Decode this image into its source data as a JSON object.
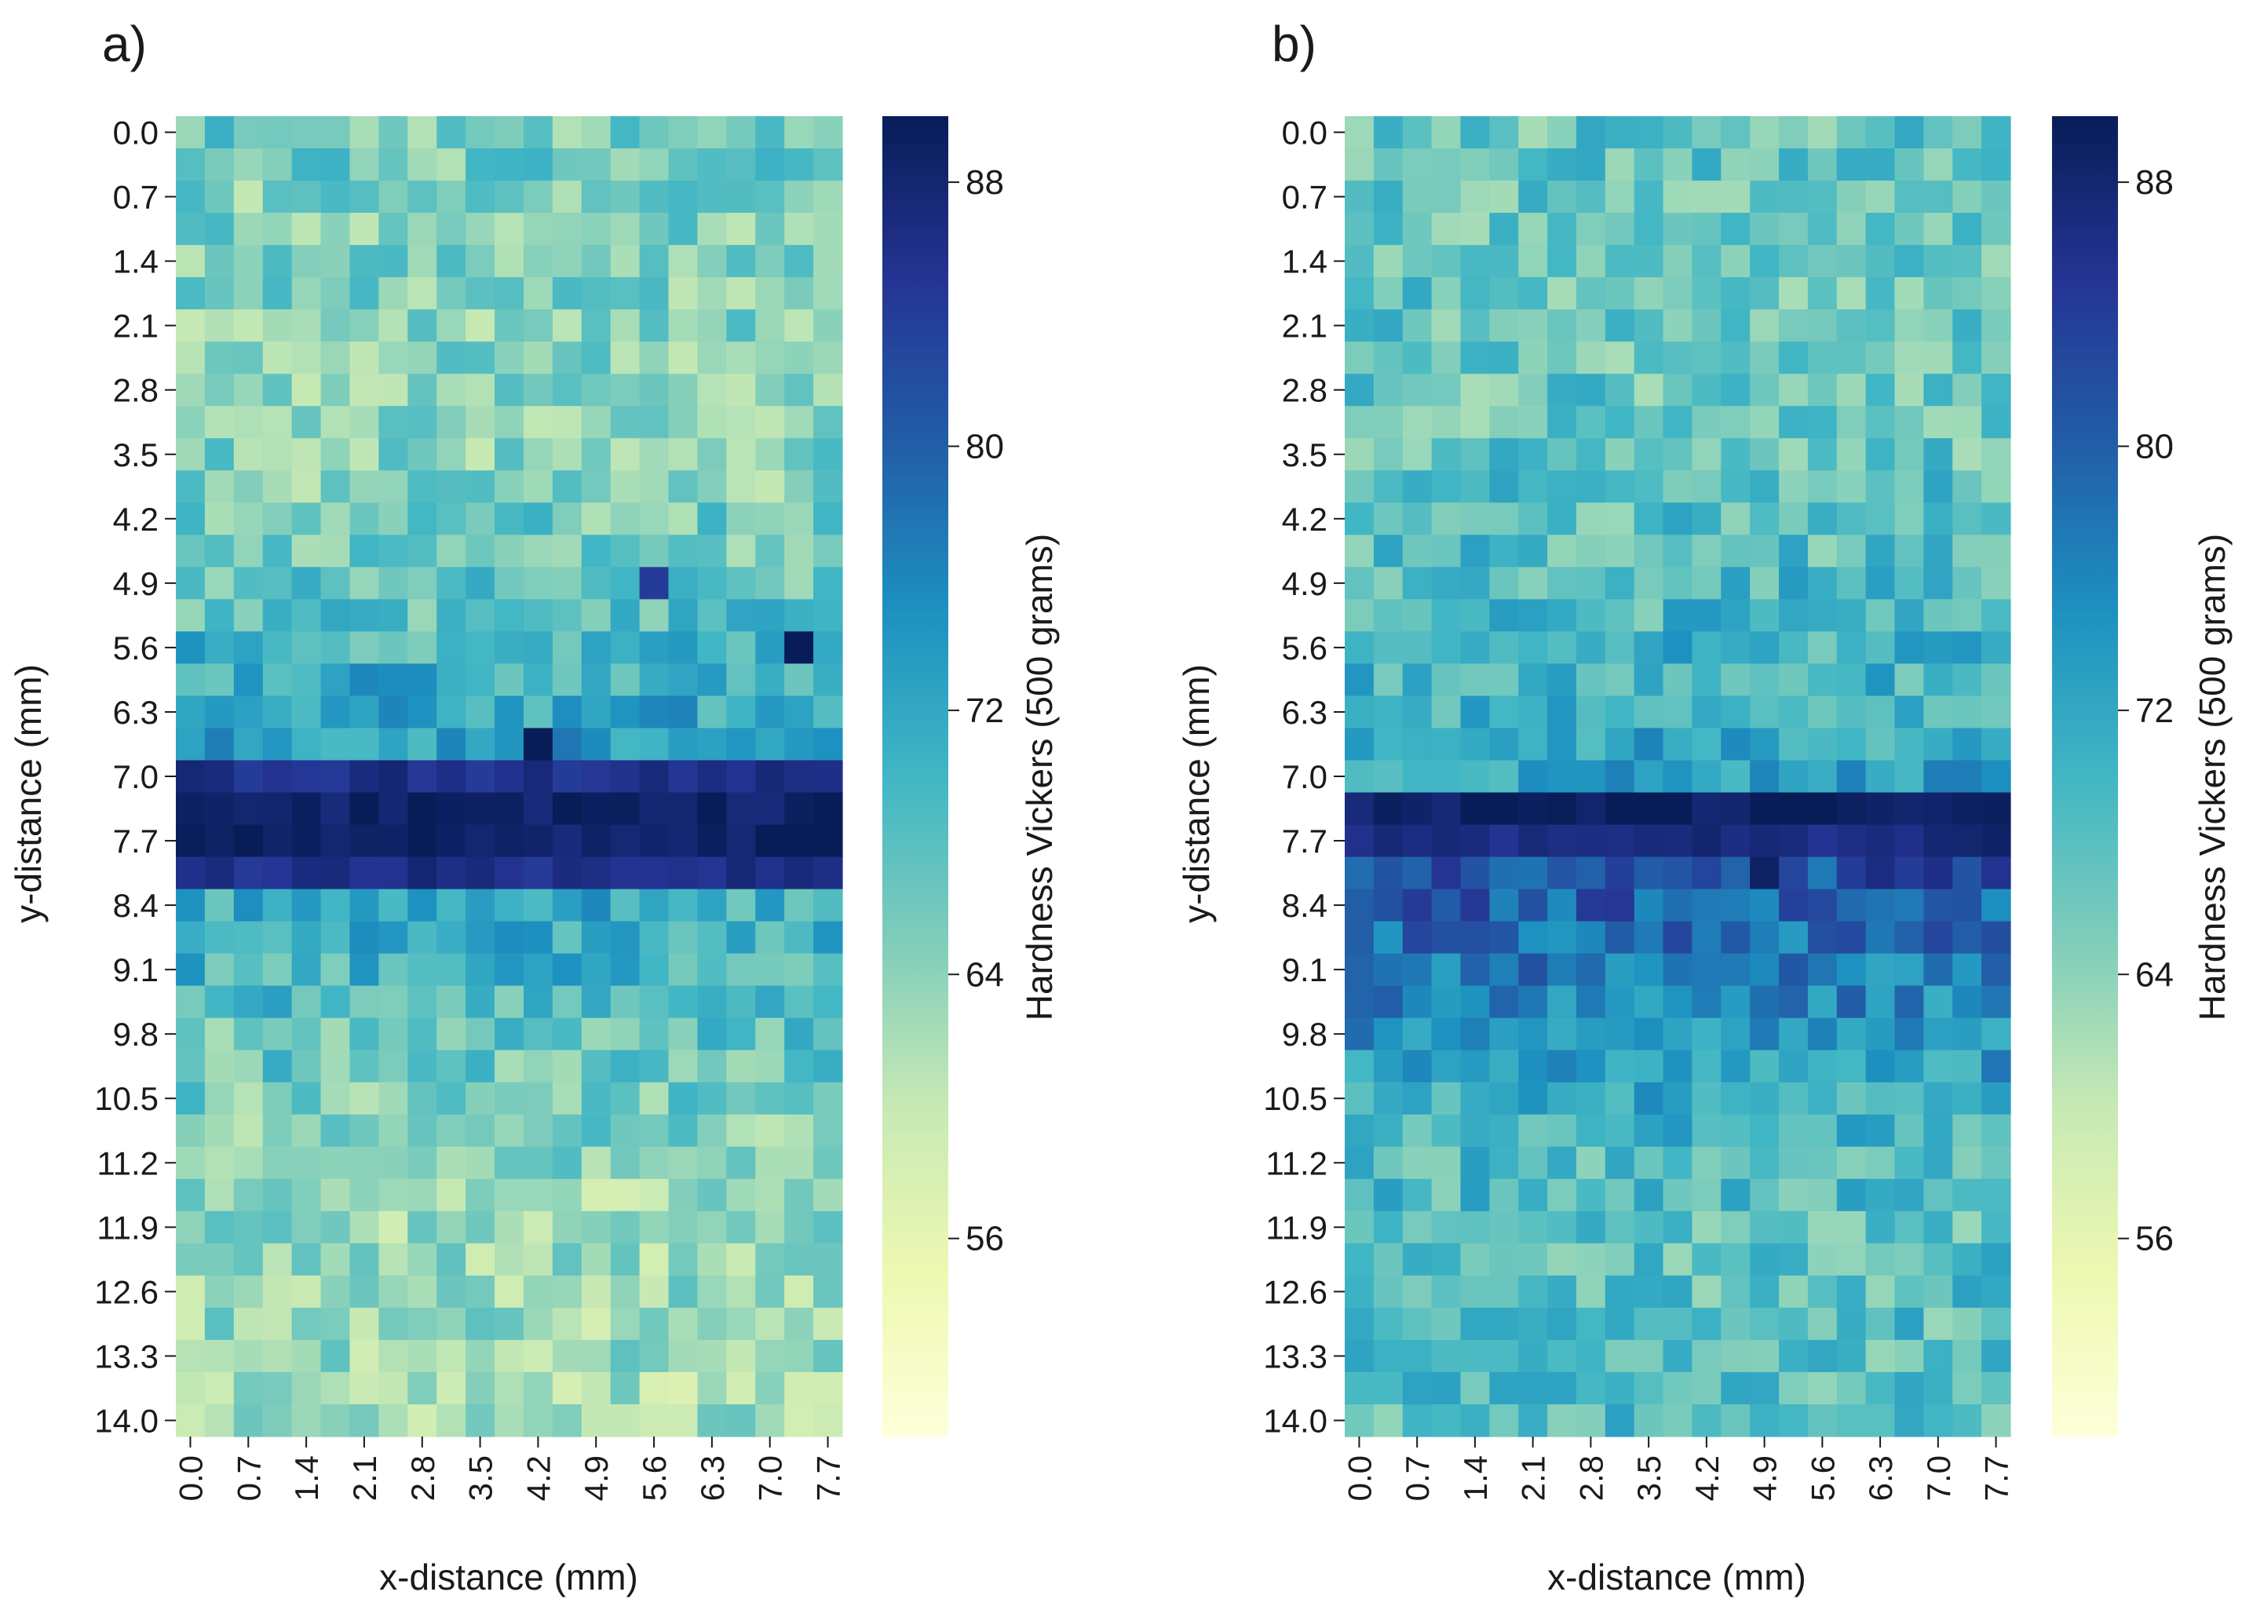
{
  "chart_data": [
    {
      "type": "heatmap",
      "panel_label": "a)",
      "xlabel": "x-distance (mm)",
      "ylabel": "y-distance (mm)",
      "x": [
        0.0,
        0.35,
        0.7,
        1.05,
        1.4,
        1.75,
        2.1,
        2.45,
        2.8,
        3.15,
        3.5,
        3.85,
        4.2,
        4.55,
        4.9,
        5.25,
        5.6,
        5.95,
        6.3,
        6.65,
        7.0,
        7.35,
        7.7
      ],
      "y": [
        0.0,
        0.35,
        0.7,
        1.05,
        1.4,
        1.75,
        2.1,
        2.45,
        2.8,
        3.15,
        3.5,
        3.85,
        4.2,
        4.55,
        4.9,
        5.25,
        5.6,
        5.95,
        6.3,
        6.65,
        7.0,
        7.35,
        7.7,
        8.05,
        8.4,
        8.75,
        9.1,
        9.45,
        9.8,
        10.15,
        10.5,
        10.85,
        11.2,
        11.55,
        11.9,
        12.25,
        12.6,
        12.95,
        13.3,
        13.65,
        14.0
      ],
      "x_tick_labels": [
        "0.0",
        "0.7",
        "1.4",
        "2.1",
        "2.8",
        "3.5",
        "4.2",
        "4.9",
        "5.6",
        "6.3",
        "7.0",
        "7.7"
      ],
      "y_tick_labels": [
        "0.0",
        "0.7",
        "1.4",
        "2.1",
        "2.8",
        "3.5",
        "4.2",
        "4.9",
        "5.6",
        "6.3",
        "7.0",
        "7.7",
        "8.4",
        "9.1",
        "9.8",
        "10.5",
        "11.2",
        "11.9",
        "12.6",
        "13.3",
        "14.0"
      ],
      "row_profile": [
        66,
        66,
        65,
        65,
        65,
        65,
        65,
        65,
        64,
        65,
        65,
        65,
        66,
        66,
        67,
        68,
        70,
        71,
        72,
        73,
        86,
        89,
        89,
        86,
        71,
        71,
        70,
        69,
        67,
        67,
        66,
        65,
        64,
        63,
        63,
        63,
        63,
        63,
        63,
        62,
        62
      ],
      "band_overrides": [
        {
          "row": 22,
          "cols": [
            21,
            22
          ],
          "value": 91
        },
        {
          "row": 16,
          "cols": [
            21
          ],
          "value": 90
        },
        {
          "row": 19,
          "cols": [
            12
          ],
          "value": 90
        },
        {
          "row": 14,
          "cols": [
            16
          ],
          "value": 84
        }
      ],
      "colorbar": {
        "label": "Hardness Vickers (500 grams)",
        "ticks": [
          56,
          64,
          72,
          80,
          88
        ],
        "vmin": 50,
        "vmax": 90,
        "colormap": "YlGnBu"
      }
    },
    {
      "type": "heatmap",
      "panel_label": "b)",
      "xlabel": "x-distance (mm)",
      "ylabel": "y-distance (mm)",
      "x": [
        0.0,
        0.35,
        0.7,
        1.05,
        1.4,
        1.75,
        2.1,
        2.45,
        2.8,
        3.15,
        3.5,
        3.85,
        4.2,
        4.55,
        4.9,
        5.25,
        5.6,
        5.95,
        6.3,
        6.65,
        7.0,
        7.35,
        7.7
      ],
      "y": [
        0.0,
        0.35,
        0.7,
        1.05,
        1.4,
        1.75,
        2.1,
        2.45,
        2.8,
        3.15,
        3.5,
        3.85,
        4.2,
        4.55,
        4.9,
        5.25,
        5.6,
        5.95,
        6.3,
        6.65,
        7.0,
        7.35,
        7.7,
        8.05,
        8.4,
        8.75,
        9.1,
        9.45,
        9.8,
        10.15,
        10.5,
        10.85,
        11.2,
        11.55,
        11.9,
        12.25,
        12.6,
        12.95,
        13.3,
        13.65,
        14.0
      ],
      "x_tick_labels": [
        "0.0",
        "0.7",
        "1.4",
        "2.1",
        "2.8",
        "3.5",
        "4.2",
        "4.9",
        "5.6",
        "6.3",
        "7.0",
        "7.7"
      ],
      "y_tick_labels": [
        "0.0",
        "0.7",
        "1.4",
        "2.1",
        "2.8",
        "3.5",
        "4.2",
        "4.9",
        "5.6",
        "6.3",
        "7.0",
        "7.7",
        "8.4",
        "9.1",
        "9.8",
        "10.5",
        "11.2",
        "11.9",
        "12.6",
        "13.3",
        "14.0"
      ],
      "row_profile": [
        67,
        67,
        67,
        67,
        67,
        67,
        67,
        67,
        67,
        67,
        67,
        68,
        68,
        68,
        69,
        69,
        70,
        70,
        71,
        72,
        73,
        89,
        87,
        82,
        80,
        78,
        77,
        76,
        74,
        73,
        71,
        70,
        69,
        69,
        68,
        68,
        68,
        68,
        68,
        68,
        68
      ],
      "band_overrides": [
        {
          "row": 23,
          "cols": [
            14
          ],
          "value": 89
        }
      ],
      "colorbar": {
        "label": "Hardness Vickers (500 grams)",
        "ticks": [
          56,
          64,
          72,
          80,
          88
        ],
        "vmin": 50,
        "vmax": 90,
        "colormap": "YlGnBu"
      }
    }
  ]
}
